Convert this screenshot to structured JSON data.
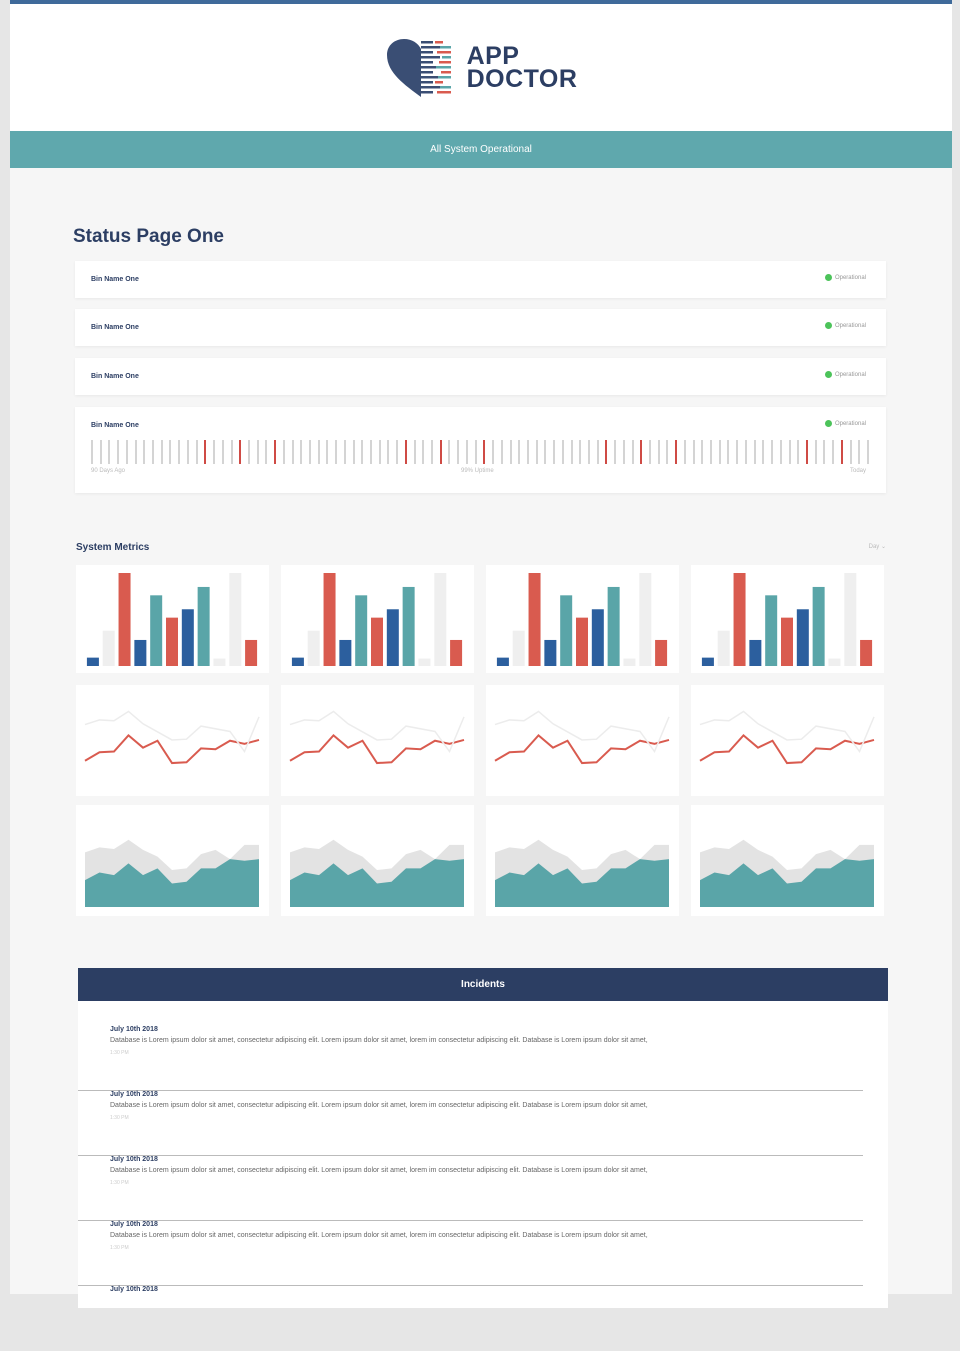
{
  "logo": {
    "line1": "APP",
    "line2": "DOCTOR"
  },
  "banner": "All System Operational",
  "page_title": "Status Page One",
  "bins": [
    {
      "name": "Bin Name One",
      "status": "Operational"
    },
    {
      "name": "Bin Name One",
      "status": "Operational"
    },
    {
      "name": "Bin Name One",
      "status": "Operational"
    },
    {
      "name": "Bin Name One",
      "status": "Operational"
    }
  ],
  "uptime": {
    "days": 90,
    "down_days": [
      13,
      17,
      21,
      36,
      40,
      45,
      59,
      63,
      67,
      82,
      86
    ],
    "left": "90 Days Ago",
    "center": "99% Uptime",
    "right": "Today"
  },
  "metrics": {
    "title": "System Metrics",
    "range": "Day"
  },
  "colors": {
    "blue": "#2c5f9e",
    "red": "#d95b4f",
    "teal": "#5aa5a8",
    "grey": "#efefef",
    "navy": "#2c3e63"
  },
  "chart_data": [
    {
      "type": "bar",
      "values": [
        9,
        38,
        100,
        28,
        76,
        52,
        61,
        85,
        8,
        100,
        28
      ],
      "colors": [
        "blue",
        "grey",
        "red",
        "blue",
        "teal",
        "red",
        "blue",
        "teal",
        "grey",
        "grey",
        "red"
      ],
      "ylim": [
        0,
        100
      ]
    },
    {
      "type": "line",
      "series": [
        {
          "name": "primary",
          "color": "red",
          "values": [
            25,
            36,
            37,
            58,
            42,
            51,
            22,
            23,
            41,
            40,
            51,
            47,
            52
          ]
        },
        {
          "name": "secondary",
          "color": "grey",
          "values": [
            72,
            78,
            77,
            89,
            73,
            null,
            52,
            53,
            70,
            null,
            63,
            37,
            82
          ]
        }
      ],
      "ylim": [
        0,
        100
      ]
    },
    {
      "type": "area",
      "series": [
        {
          "name": "back",
          "color": "grey",
          "values": [
            65,
            71,
            69,
            80,
            68,
            60,
            44,
            46,
            63,
            68,
            57,
            74,
            74
          ]
        },
        {
          "name": "front",
          "color": "teal",
          "values": [
            32,
            41,
            38,
            52,
            38,
            46,
            28,
            30,
            46,
            46,
            57,
            55,
            57
          ]
        }
      ],
      "ylim": [
        0,
        100
      ]
    }
  ],
  "incidents": {
    "title": "Incidents",
    "items": [
      {
        "date": "July 10th 2018",
        "text": "Database is Lorem ipsum dolor sit amet, consectetur adipiscing elit. Lorem ipsum dolor sit amet, lorem im consectetur adipiscing elit. Database is Lorem ipsum dolor sit amet,",
        "time": "1:30 PM"
      },
      {
        "date": "July 10th 2018",
        "text": "Database is Lorem ipsum dolor sit amet, consectetur adipiscing elit. Lorem ipsum dolor sit amet, lorem im consectetur adipiscing elit. Database is Lorem ipsum dolor sit amet,",
        "time": "1:30 PM"
      },
      {
        "date": "July 10th 2018",
        "text": "Database is Lorem ipsum dolor sit amet, consectetur adipiscing elit. Lorem ipsum dolor sit amet, lorem im consectetur adipiscing elit. Database is Lorem ipsum dolor sit amet,",
        "time": "1:30 PM"
      },
      {
        "date": "July 10th 2018",
        "text": "Database is Lorem ipsum dolor sit amet, consectetur adipiscing elit. Lorem ipsum dolor sit amet, lorem im consectetur adipiscing elit. Database is Lorem ipsum dolor sit amet,",
        "time": "1:30 PM"
      },
      {
        "date": "July 10th 2018",
        "text": "",
        "time": ""
      }
    ]
  }
}
